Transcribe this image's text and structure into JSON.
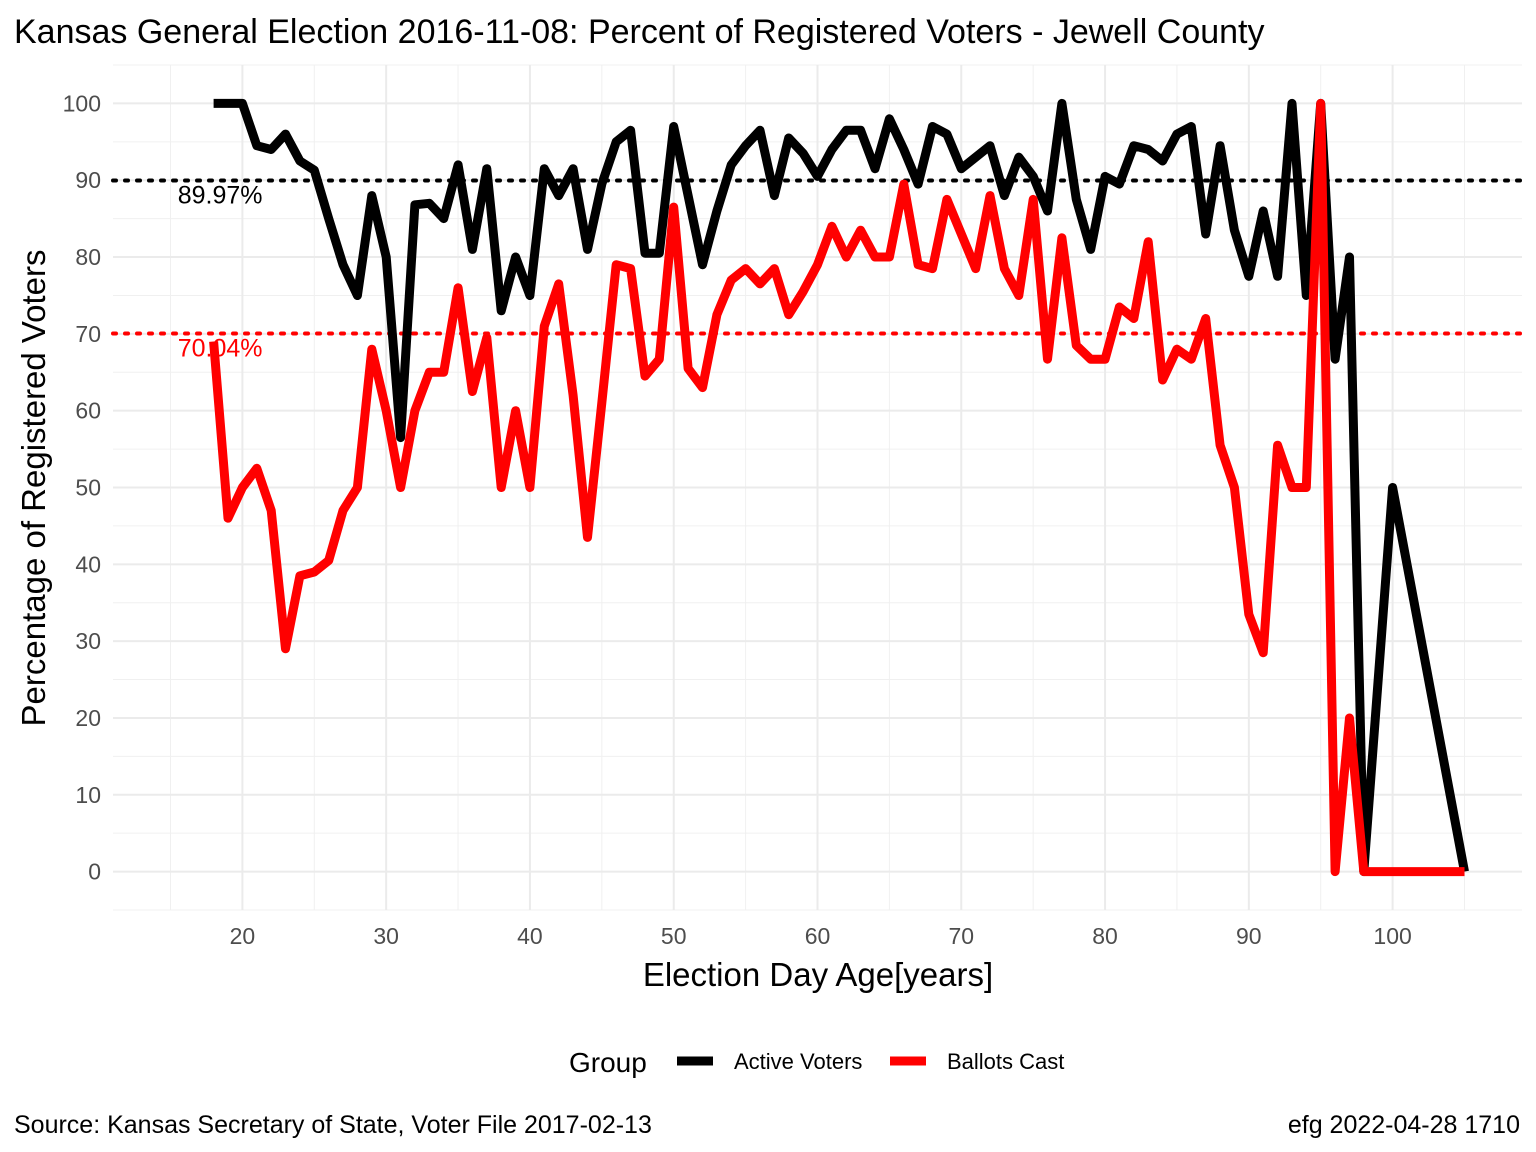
{
  "chart_data": {
    "type": "line",
    "title": "Kansas General Election 2016-11-08:  Percent of Registered Voters - Jewell County",
    "xlabel": "Election Day Age[years]",
    "ylabel": "Percentage of Registered Voters",
    "xlim": [
      11,
      109
    ],
    "ylim": [
      -5,
      105
    ],
    "x_ticks": [
      20,
      30,
      40,
      50,
      60,
      70,
      80,
      90,
      100
    ],
    "y_ticks": [
      0,
      10,
      20,
      30,
      40,
      50,
      60,
      70,
      80,
      90,
      100
    ],
    "grid": true,
    "legend": {
      "title": "Group",
      "position": "bottom",
      "entries": [
        {
          "label": "Active Voters",
          "color": "#000000"
        },
        {
          "label": "Ballots Cast",
          "color": "#ff0000"
        }
      ]
    },
    "reference_lines": [
      {
        "value": 89.97,
        "label": "89.97%",
        "color": "#000000",
        "style": "dotted"
      },
      {
        "value": 70.04,
        "label": "70.04%",
        "color": "#ff0000",
        "style": "dotted"
      }
    ],
    "series": [
      {
        "name": "Active Voters",
        "color": "#000000",
        "x": [
          18,
          19,
          20,
          21,
          22,
          23,
          24,
          25,
          26,
          27,
          28,
          29,
          30,
          31,
          32,
          33,
          34,
          35,
          36,
          37,
          38,
          39,
          40,
          41,
          42,
          43,
          44,
          45,
          46,
          47,
          48,
          49,
          50,
          51,
          52,
          53,
          54,
          55,
          56,
          57,
          58,
          59,
          60,
          61,
          62,
          63,
          64,
          65,
          66,
          67,
          68,
          69,
          70,
          71,
          72,
          73,
          74,
          75,
          76,
          77,
          78,
          79,
          80,
          81,
          82,
          83,
          84,
          85,
          86,
          87,
          88,
          89,
          90,
          91,
          92,
          93,
          94,
          95,
          96,
          97,
          98,
          100,
          105
        ],
        "y": [
          100,
          100,
          100,
          94.5,
          94,
          96,
          92.5,
          91.3,
          85,
          79,
          75,
          88,
          80,
          56.5,
          86.8,
          87,
          85,
          92,
          81,
          91.5,
          73,
          80,
          75,
          91.5,
          88,
          91.5,
          81,
          89.5,
          95,
          96.5,
          80.5,
          80.5,
          97,
          88,
          79,
          86,
          92,
          94.5,
          96.5,
          88,
          95.5,
          93.5,
          90.5,
          94,
          96.5,
          96.5,
          91.5,
          98,
          94,
          89.5,
          97,
          96,
          91.5,
          93,
          94.5,
          88,
          93,
          90.5,
          86,
          100,
          87.5,
          81,
          90.5,
          89.5,
          94.5,
          94,
          92.5,
          96,
          97,
          83,
          94.5,
          83.5,
          77.5,
          86,
          77.5,
          100,
          75,
          100,
          66.7,
          80,
          0,
          50,
          0
        ]
      },
      {
        "name": "Ballots Cast",
        "color": "#ff0000",
        "x": [
          18,
          19,
          20,
          21,
          22,
          23,
          24,
          25,
          26,
          27,
          28,
          29,
          30,
          31,
          32,
          33,
          34,
          35,
          36,
          37,
          38,
          39,
          40,
          41,
          42,
          43,
          44,
          45,
          46,
          47,
          48,
          49,
          50,
          51,
          52,
          53,
          54,
          55,
          56,
          57,
          58,
          59,
          60,
          61,
          62,
          63,
          64,
          65,
          66,
          67,
          68,
          69,
          70,
          71,
          72,
          73,
          74,
          75,
          76,
          77,
          78,
          79,
          80,
          81,
          82,
          83,
          84,
          85,
          86,
          87,
          88,
          89,
          90,
          91,
          92,
          93,
          94,
          95,
          96,
          97,
          98,
          100,
          105
        ],
        "y": [
          69,
          46,
          50,
          52.5,
          47,
          29,
          38.5,
          39,
          40.5,
          47,
          50,
          68,
          60,
          50,
          60,
          65,
          65,
          76,
          62.5,
          69.5,
          50,
          60,
          50,
          71,
          76.5,
          62,
          43.5,
          61,
          79,
          78.5,
          64.5,
          66.7,
          86.5,
          65.5,
          63,
          72.5,
          77,
          78.5,
          76.5,
          78.5,
          72.5,
          75.5,
          79,
          84,
          80,
          83.5,
          80,
          80,
          89.5,
          79,
          78.5,
          87.5,
          83,
          78.5,
          88,
          78.5,
          75,
          87.5,
          66.7,
          82.5,
          68.5,
          66.7,
          66.7,
          73.5,
          72,
          82,
          64,
          68,
          66.7,
          72,
          55.5,
          50,
          33.5,
          28.5,
          55.5,
          50,
          50,
          100,
          0,
          20,
          0,
          0,
          0
        ]
      }
    ]
  },
  "caption_left": "Source:  Kansas Secretary of State, Voter File  2017-02-13",
  "caption_right": "efg 2022-04-28 1710"
}
